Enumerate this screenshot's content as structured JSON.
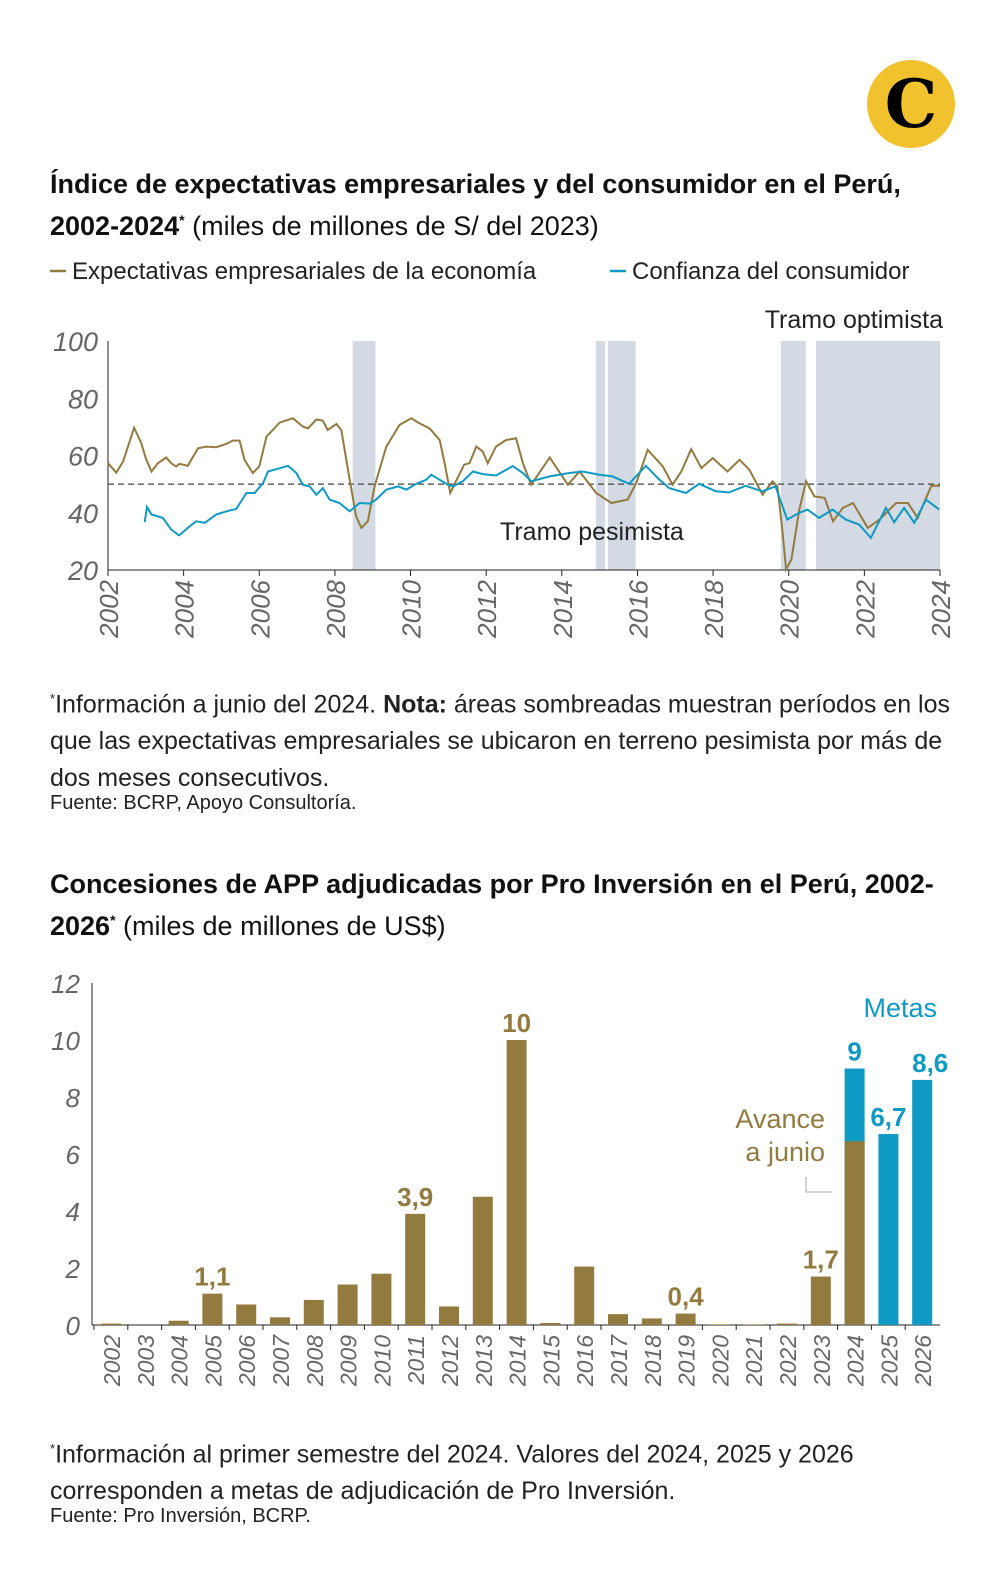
{
  "brand": {
    "logo_letter": "C",
    "logo_color": "#f2c12e"
  },
  "colors": {
    "gold": "#937a3e",
    "blue": "#0e9ac4",
    "shade": "#d3dae3",
    "axis_text": "#666666"
  },
  "chart1": {
    "title": "Índice de expectativas empresariales y del consumidor en el Perú, 2002-2024",
    "title_mark": "*",
    "unit": "(miles de millones de S/ del 2023)",
    "note_mark": "*",
    "note_text1": "Información a junio del 2024. ",
    "note_bold": "Nota:",
    "note_text2": " áreas sombreadas muestran períodos en los que las expectativas empresariales se ubicaron en terreno pesimista por más de dos meses consecutivos.",
    "source": "Fuente: BCRP, Apoyo Consultoría."
  },
  "chart2": {
    "title": "Concesiones de APP adjudicadas por Pro Inversión en el Perú, 2002-2026",
    "title_mark": "*",
    "unit": "(miles de millones de US$)",
    "note_mark": "*",
    "note_text": "Información al primer semestre del 2024. Valores del 2024, 2025 y 2026 corresponden a metas de adjudicación de Pro Inversión.",
    "source": "Fuente: Pro Inversión, BCRP."
  },
  "chart_data": [
    {
      "type": "line",
      "xlim": [
        2002,
        2024
      ],
      "ylim": [
        20,
        100
      ],
      "yticks": [
        20,
        40,
        60,
        80,
        100
      ],
      "xticks": [
        2002,
        2004,
        2006,
        2008,
        2010,
        2012,
        2014,
        2016,
        2018,
        2020,
        2022,
        2024
      ],
      "reference_line": 50,
      "annotations": {
        "upper": "Tramo optimista",
        "lower": "Tramo pesimista"
      },
      "legend_placement": "top",
      "shaded_periods": [
        [
          2008.47,
          2009.07
        ],
        [
          2014.9,
          2015.14
        ],
        [
          2015.22,
          2015.95
        ],
        [
          2019.79,
          2020.45
        ],
        [
          2020.72,
          2024.0
        ]
      ],
      "series": [
        {
          "name": "Expectativas empresariales de la economía",
          "color": "#937a3e",
          "points": [
            [
              2002.0,
              57.3
            ],
            [
              2002.22,
              54
            ],
            [
              2002.4,
              57.9
            ],
            [
              2002.69,
              69.7
            ],
            [
              2002.88,
              64.3
            ],
            [
              2003.0,
              59
            ],
            [
              2003.15,
              54.4
            ],
            [
              2003.32,
              57.3
            ],
            [
              2003.54,
              59.3
            ],
            [
              2003.67,
              57.3
            ],
            [
              2003.8,
              56.2
            ],
            [
              2003.89,
              57.1
            ],
            [
              2004.11,
              56.4
            ],
            [
              2004.38,
              62.5
            ],
            [
              2004.6,
              63.1
            ],
            [
              2004.86,
              62.9
            ],
            [
              2005.13,
              64.1
            ],
            [
              2005.3,
              65.2
            ],
            [
              2005.48,
              65.2
            ],
            [
              2005.61,
              58.5
            ],
            [
              2005.83,
              53.9
            ],
            [
              2006.0,
              56.2
            ],
            [
              2006.19,
              66.6
            ],
            [
              2006.54,
              71.5
            ],
            [
              2006.89,
              73
            ],
            [
              2007.15,
              70.1
            ],
            [
              2007.29,
              69.5
            ],
            [
              2007.51,
              72.6
            ],
            [
              2007.68,
              72.2
            ],
            [
              2007.81,
              68.9
            ],
            [
              2008.04,
              71
            ],
            [
              2008.17,
              68.9
            ],
            [
              2008.39,
              51.5
            ],
            [
              2008.56,
              38.8
            ],
            [
              2008.7,
              34.7
            ],
            [
              2008.87,
              37
            ],
            [
              2009.05,
              49.2
            ],
            [
              2009.36,
              63.1
            ],
            [
              2009.71,
              70.7
            ],
            [
              2010.02,
              73
            ],
            [
              2010.24,
              71.2
            ],
            [
              2010.5,
              69.5
            ],
            [
              2010.77,
              65.4
            ],
            [
              2010.9,
              57.3
            ],
            [
              2011.05,
              46.9
            ],
            [
              2011.2,
              51
            ],
            [
              2011.42,
              56.8
            ],
            [
              2011.56,
              57.3
            ],
            [
              2011.74,
              63.1
            ],
            [
              2011.91,
              61.4
            ],
            [
              2012.04,
              57.3
            ],
            [
              2012.26,
              63.1
            ],
            [
              2012.53,
              65.4
            ],
            [
              2012.79,
              66
            ],
            [
              2012.97,
              57.3
            ],
            [
              2013.19,
              49.8
            ],
            [
              2013.68,
              59.3
            ],
            [
              2014.16,
              49.8
            ],
            [
              2014.47,
              54.4
            ],
            [
              2014.91,
              46.9
            ],
            [
              2015.31,
              43.4
            ],
            [
              2015.74,
              44.6
            ],
            [
              2015.97,
              50.4
            ],
            [
              2016.27,
              62
            ],
            [
              2016.67,
              56.2
            ],
            [
              2016.93,
              49.8
            ],
            [
              2017.16,
              54.4
            ],
            [
              2017.42,
              62.2
            ],
            [
              2017.69,
              55.6
            ],
            [
              2017.99,
              59.1
            ],
            [
              2018.38,
              54.4
            ],
            [
              2018.7,
              58.5
            ],
            [
              2018.96,
              55
            ],
            [
              2019.31,
              46.3
            ],
            [
              2019.57,
              51
            ],
            [
              2019.7,
              49.2
            ],
            [
              2019.83,
              34.1
            ],
            [
              2019.93,
              20.2
            ],
            [
              2020.07,
              23.7
            ],
            [
              2020.28,
              41.1
            ],
            [
              2020.46,
              51
            ],
            [
              2020.68,
              45.7
            ],
            [
              2020.95,
              45.2
            ],
            [
              2021.17,
              37
            ],
            [
              2021.43,
              41.7
            ],
            [
              2021.7,
              43.4
            ],
            [
              2022.09,
              34.7
            ],
            [
              2022.4,
              37.6
            ],
            [
              2022.84,
              43.4
            ],
            [
              2023.15,
              43.4
            ],
            [
              2023.41,
              38.2
            ],
            [
              2023.77,
              49.4
            ],
            [
              2024.0,
              49.4
            ]
          ]
        },
        {
          "name": "Confianza del consumidor",
          "color": "#0e9ac4",
          "points": [
            [
              2002.97,
              36.7
            ],
            [
              2003.03,
              42
            ],
            [
              2003.15,
              39.4
            ],
            [
              2003.45,
              38.2
            ],
            [
              2003.67,
              34.1
            ],
            [
              2003.88,
              32.1
            ],
            [
              2004.11,
              34.7
            ],
            [
              2004.33,
              37
            ],
            [
              2004.56,
              36.5
            ],
            [
              2004.86,
              39.4
            ],
            [
              2005.13,
              40.5
            ],
            [
              2005.39,
              41.3
            ],
            [
              2005.66,
              46.9
            ],
            [
              2005.88,
              46.9
            ],
            [
              2006.1,
              50.4
            ],
            [
              2006.23,
              54.4
            ],
            [
              2006.45,
              55.2
            ],
            [
              2006.76,
              56.4
            ],
            [
              2006.98,
              53.9
            ],
            [
              2007.15,
              49.8
            ],
            [
              2007.33,
              49.2
            ],
            [
              2007.51,
              46.3
            ],
            [
              2007.68,
              48.6
            ],
            [
              2007.86,
              44.6
            ],
            [
              2008.12,
              43.4
            ],
            [
              2008.39,
              40.5
            ],
            [
              2008.65,
              43.4
            ],
            [
              2008.92,
              43.2
            ],
            [
              2009.09,
              44.6
            ],
            [
              2009.36,
              48.1
            ],
            [
              2009.67,
              49.2
            ],
            [
              2009.89,
              48.1
            ],
            [
              2010.15,
              50.1
            ],
            [
              2010.41,
              51.5
            ],
            [
              2010.55,
              53.3
            ],
            [
              2010.77,
              51.5
            ],
            [
              2010.99,
              49.8
            ],
            [
              2011.12,
              49.2
            ],
            [
              2011.38,
              51
            ],
            [
              2011.65,
              54.4
            ],
            [
              2011.91,
              53.5
            ],
            [
              2012.26,
              53
            ],
            [
              2012.7,
              56.3
            ],
            [
              2012.97,
              53.9
            ],
            [
              2013.19,
              51
            ],
            [
              2013.68,
              52.7
            ],
            [
              2014.2,
              53.9
            ],
            [
              2014.55,
              54.4
            ],
            [
              2014.99,
              53.3
            ],
            [
              2015.34,
              52.7
            ],
            [
              2015.78,
              50.1
            ],
            [
              2016.22,
              56.4
            ],
            [
              2016.57,
              51.7
            ],
            [
              2016.84,
              48.6
            ],
            [
              2017.28,
              46.9
            ],
            [
              2017.63,
              50.1
            ],
            [
              2018.07,
              47.5
            ],
            [
              2018.42,
              47.1
            ],
            [
              2018.86,
              49.4
            ],
            [
              2019.3,
              47.5
            ],
            [
              2019.65,
              49.2
            ],
            [
              2019.96,
              37.6
            ],
            [
              2020.28,
              40
            ],
            [
              2020.5,
              41.1
            ],
            [
              2020.8,
              38.2
            ],
            [
              2021.16,
              41.1
            ],
            [
              2021.51,
              37.6
            ],
            [
              2021.86,
              35.9
            ],
            [
              2022.17,
              31.2
            ],
            [
              2022.57,
              41.7
            ],
            [
              2022.79,
              36.7
            ],
            [
              2023.05,
              41.7
            ],
            [
              2023.32,
              36.5
            ],
            [
              2023.63,
              44.6
            ],
            [
              2023.98,
              41.1
            ]
          ]
        }
      ]
    },
    {
      "type": "bar",
      "ylim": [
        0,
        12
      ],
      "yticks": [
        0,
        2,
        4,
        6,
        8,
        10,
        12
      ],
      "categories": [
        "2002",
        "2003",
        "2004",
        "2005",
        "2006",
        "2007",
        "2008",
        "2009",
        "2010",
        "2011",
        "2012",
        "2013",
        "2014",
        "2015",
        "2016",
        "2017",
        "2018",
        "2019",
        "2020",
        "2021",
        "2022",
        "2023",
        "2024",
        "2025",
        "2026"
      ],
      "values": [
        0.05,
        0,
        0.15,
        1.1,
        0.72,
        0.27,
        0.88,
        1.42,
        1.8,
        3.9,
        0.65,
        4.5,
        10,
        0.07,
        2.05,
        0.38,
        0.23,
        0.4,
        0.02,
        0.02,
        0.05,
        1.7,
        9,
        6.7,
        8.6
      ],
      "advance_to_june": {
        "2024": 6.45
      },
      "goal_categories": [
        "2024",
        "2025",
        "2026"
      ],
      "data_labels": {
        "2005": "1,1",
        "2011": "3,9",
        "2014": "10",
        "2019": "0,4",
        "2023": "1,7",
        "2024": "9",
        "2025": "6,7",
        "2026": "8,6"
      },
      "annotations": {
        "goals": "Metas",
        "advance_line1": "Avance",
        "advance_line2": "a junio"
      }
    }
  ]
}
